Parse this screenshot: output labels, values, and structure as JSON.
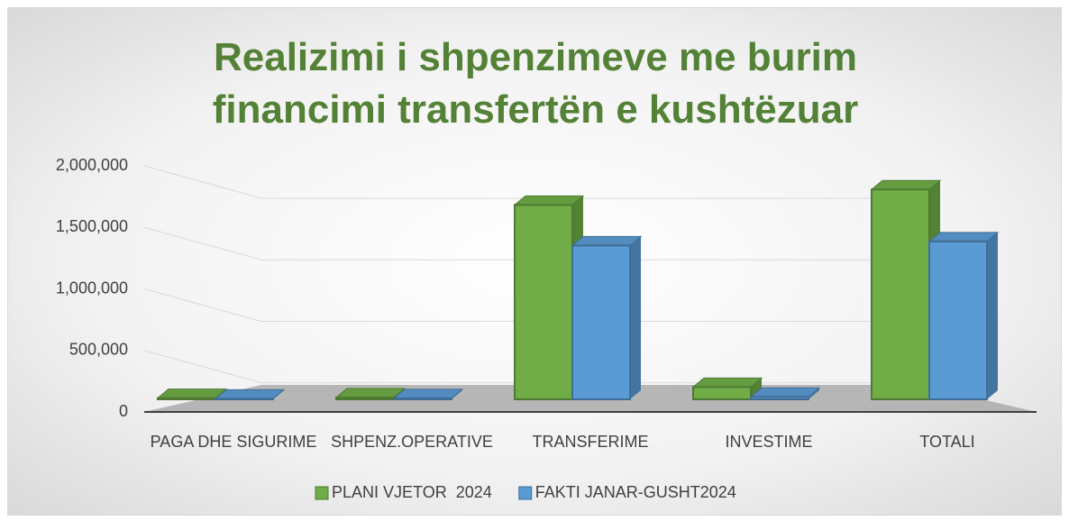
{
  "chart_data": {
    "type": "bar",
    "title": "Realizimi i shpenzimeve me burim financimi transfertën e kushtëzuar",
    "categories": [
      "PAGA DHE SIGURIME",
      "SHPENZ.OPERATIVE",
      "TRANSFERIME",
      "INVESTIME",
      "TOTALI"
    ],
    "series": [
      {
        "name": "PLANI VJETOR  2024",
        "color": "#70ad47",
        "values": [
          10000,
          15000,
          1580000,
          100000,
          1705000
        ]
      },
      {
        "name": "FAKTI JANAR-GUSHT2024",
        "color": "#5b9bd5",
        "values": [
          5000,
          8000,
          1250000,
          20000,
          1283000
        ]
      }
    ],
    "ylim": [
      0,
      2000000
    ],
    "yticks": [
      0,
      {
        "value": 500000,
        "label": "500,000"
      },
      {
        "value": 1000000,
        "label": "1,000,000"
      },
      {
        "value": 1500000,
        "label": "1,500,000"
      },
      {
        "value": 2000000,
        "label": "2,000,000"
      }
    ],
    "grid": true,
    "legend": "bottom"
  }
}
